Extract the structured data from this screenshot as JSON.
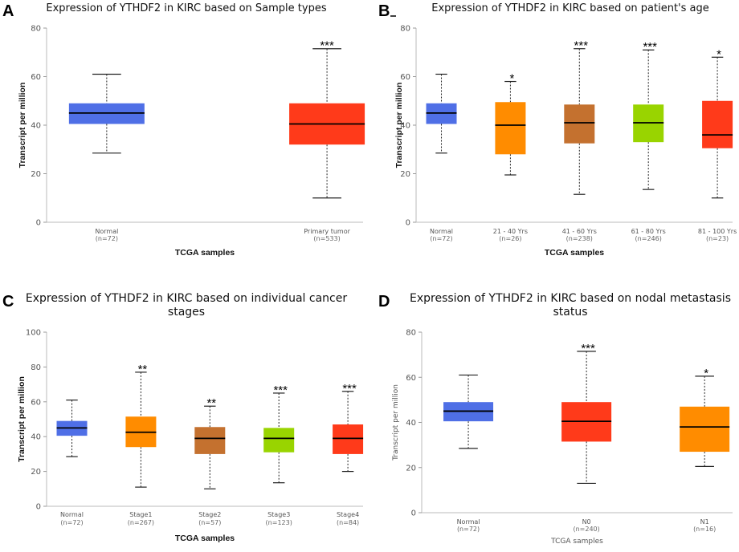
{
  "chart_data": [
    {
      "type": "box",
      "panel_label": "A",
      "title": [
        "Expression of YTHDF2 in KIRC based on Sample types"
      ],
      "xlabel": "TCGA samples",
      "ylabel": "Transcript per million",
      "ylim": [
        0,
        80
      ],
      "yticks": [
        0,
        20,
        40,
        60,
        80
      ],
      "categories": [
        "Normal",
        "Primary tumor"
      ],
      "n": [
        "(n=72)",
        "(n=533)"
      ],
      "boxes": [
        {
          "min": 28.5,
          "q1": 40.5,
          "median": 45,
          "q3": 49,
          "max": 61,
          "color": "#4f6fe6",
          "sig": ""
        },
        {
          "min": 10,
          "q1": 32,
          "median": 40.5,
          "q3": 49,
          "max": 71.5,
          "color": "#ff3a1a",
          "sig": "***"
        }
      ]
    },
    {
      "type": "box",
      "panel_label": "B",
      "title": [
        "Expression of YTHDF2 in KIRC based on patient's age"
      ],
      "xlabel": "TCGA samples",
      "ylabel": "Transcript per million",
      "ylim": [
        0,
        80
      ],
      "yticks": [
        0,
        20,
        40,
        60,
        80
      ],
      "categories": [
        "Normal",
        "21 - 40 Yrs",
        "41 - 60 Yrs",
        "61 - 80 Yrs",
        "81 - 100 Yrs"
      ],
      "n": [
        "(n=72)",
        "(n=26)",
        "(n=238)",
        "(n=246)",
        "(n=23)"
      ],
      "boxes": [
        {
          "min": 28.5,
          "q1": 40.5,
          "median": 45,
          "q3": 49,
          "max": 61,
          "color": "#4f6fe6",
          "sig": ""
        },
        {
          "min": 19.5,
          "q1": 28,
          "median": 40,
          "q3": 49.5,
          "max": 58,
          "color": "#ff8c00",
          "sig": "*"
        },
        {
          "min": 11.5,
          "q1": 32.5,
          "median": 41,
          "q3": 48.5,
          "max": 71.5,
          "color": "#c4712f",
          "sig": "***"
        },
        {
          "min": 13.5,
          "q1": 33,
          "median": 41,
          "q3": 48.5,
          "max": 71,
          "color": "#99d400",
          "sig": "***"
        },
        {
          "min": 10,
          "q1": 30.5,
          "median": 36,
          "q3": 50,
          "max": 68,
          "color": "#ff3a1a",
          "sig": "*"
        }
      ]
    },
    {
      "type": "box",
      "panel_label": "C",
      "title": [
        "Expression of YTHDF2 in KIRC based on individual cancer",
        "stages"
      ],
      "xlabel": "TCGA samples",
      "ylabel": "Transcript per million",
      "ylim": [
        0,
        100
      ],
      "yticks": [
        0,
        20,
        40,
        60,
        80,
        100
      ],
      "categories": [
        "Normal",
        "Stage1",
        "Stage2",
        "Stage3",
        "Stage4"
      ],
      "n": [
        "(n=72)",
        "(n=267)",
        "(n=57)",
        "(n=123)",
        "(n=84)"
      ],
      "boxes": [
        {
          "min": 28.5,
          "q1": 40.5,
          "median": 45,
          "q3": 49,
          "max": 61,
          "color": "#4f6fe6",
          "sig": ""
        },
        {
          "min": 11,
          "q1": 34,
          "median": 42.5,
          "q3": 51.5,
          "max": 77,
          "color": "#ff8c00",
          "sig": "**"
        },
        {
          "min": 10,
          "q1": 30,
          "median": 39,
          "q3": 45.5,
          "max": 57.5,
          "color": "#c4712f",
          "sig": "**"
        },
        {
          "min": 13.5,
          "q1": 31,
          "median": 39,
          "q3": 45,
          "max": 65,
          "color": "#99d400",
          "sig": "***"
        },
        {
          "min": 20,
          "q1": 30,
          "median": 39,
          "q3": 47,
          "max": 66,
          "color": "#ff3a1a",
          "sig": "***"
        }
      ]
    },
    {
      "type": "box",
      "panel_label": "D",
      "title": [
        "Expression of YTHDF2 in KIRC based on nodal metastasis",
        "status"
      ],
      "xlabel": "TCGA samples",
      "ylabel": "Transcript per million",
      "ylim": [
        0,
        80
      ],
      "yticks": [
        0,
        20,
        40,
        60,
        80
      ],
      "categories": [
        "Normal",
        "N0",
        "N1"
      ],
      "n": [
        "(n=72)",
        "(n=240)",
        "(n=16)"
      ],
      "boxes": [
        {
          "min": 28.5,
          "q1": 40.5,
          "median": 45,
          "q3": 49,
          "max": 61,
          "color": "#4f6fe6",
          "sig": ""
        },
        {
          "min": 13,
          "q1": 31.5,
          "median": 40.5,
          "q3": 49,
          "max": 71.5,
          "color": "#ff3a1a",
          "sig": "***"
        },
        {
          "min": 20.5,
          "q1": 27,
          "median": 38,
          "q3": 47,
          "max": 60.5,
          "color": "#ff8c00",
          "sig": "*"
        }
      ]
    }
  ]
}
